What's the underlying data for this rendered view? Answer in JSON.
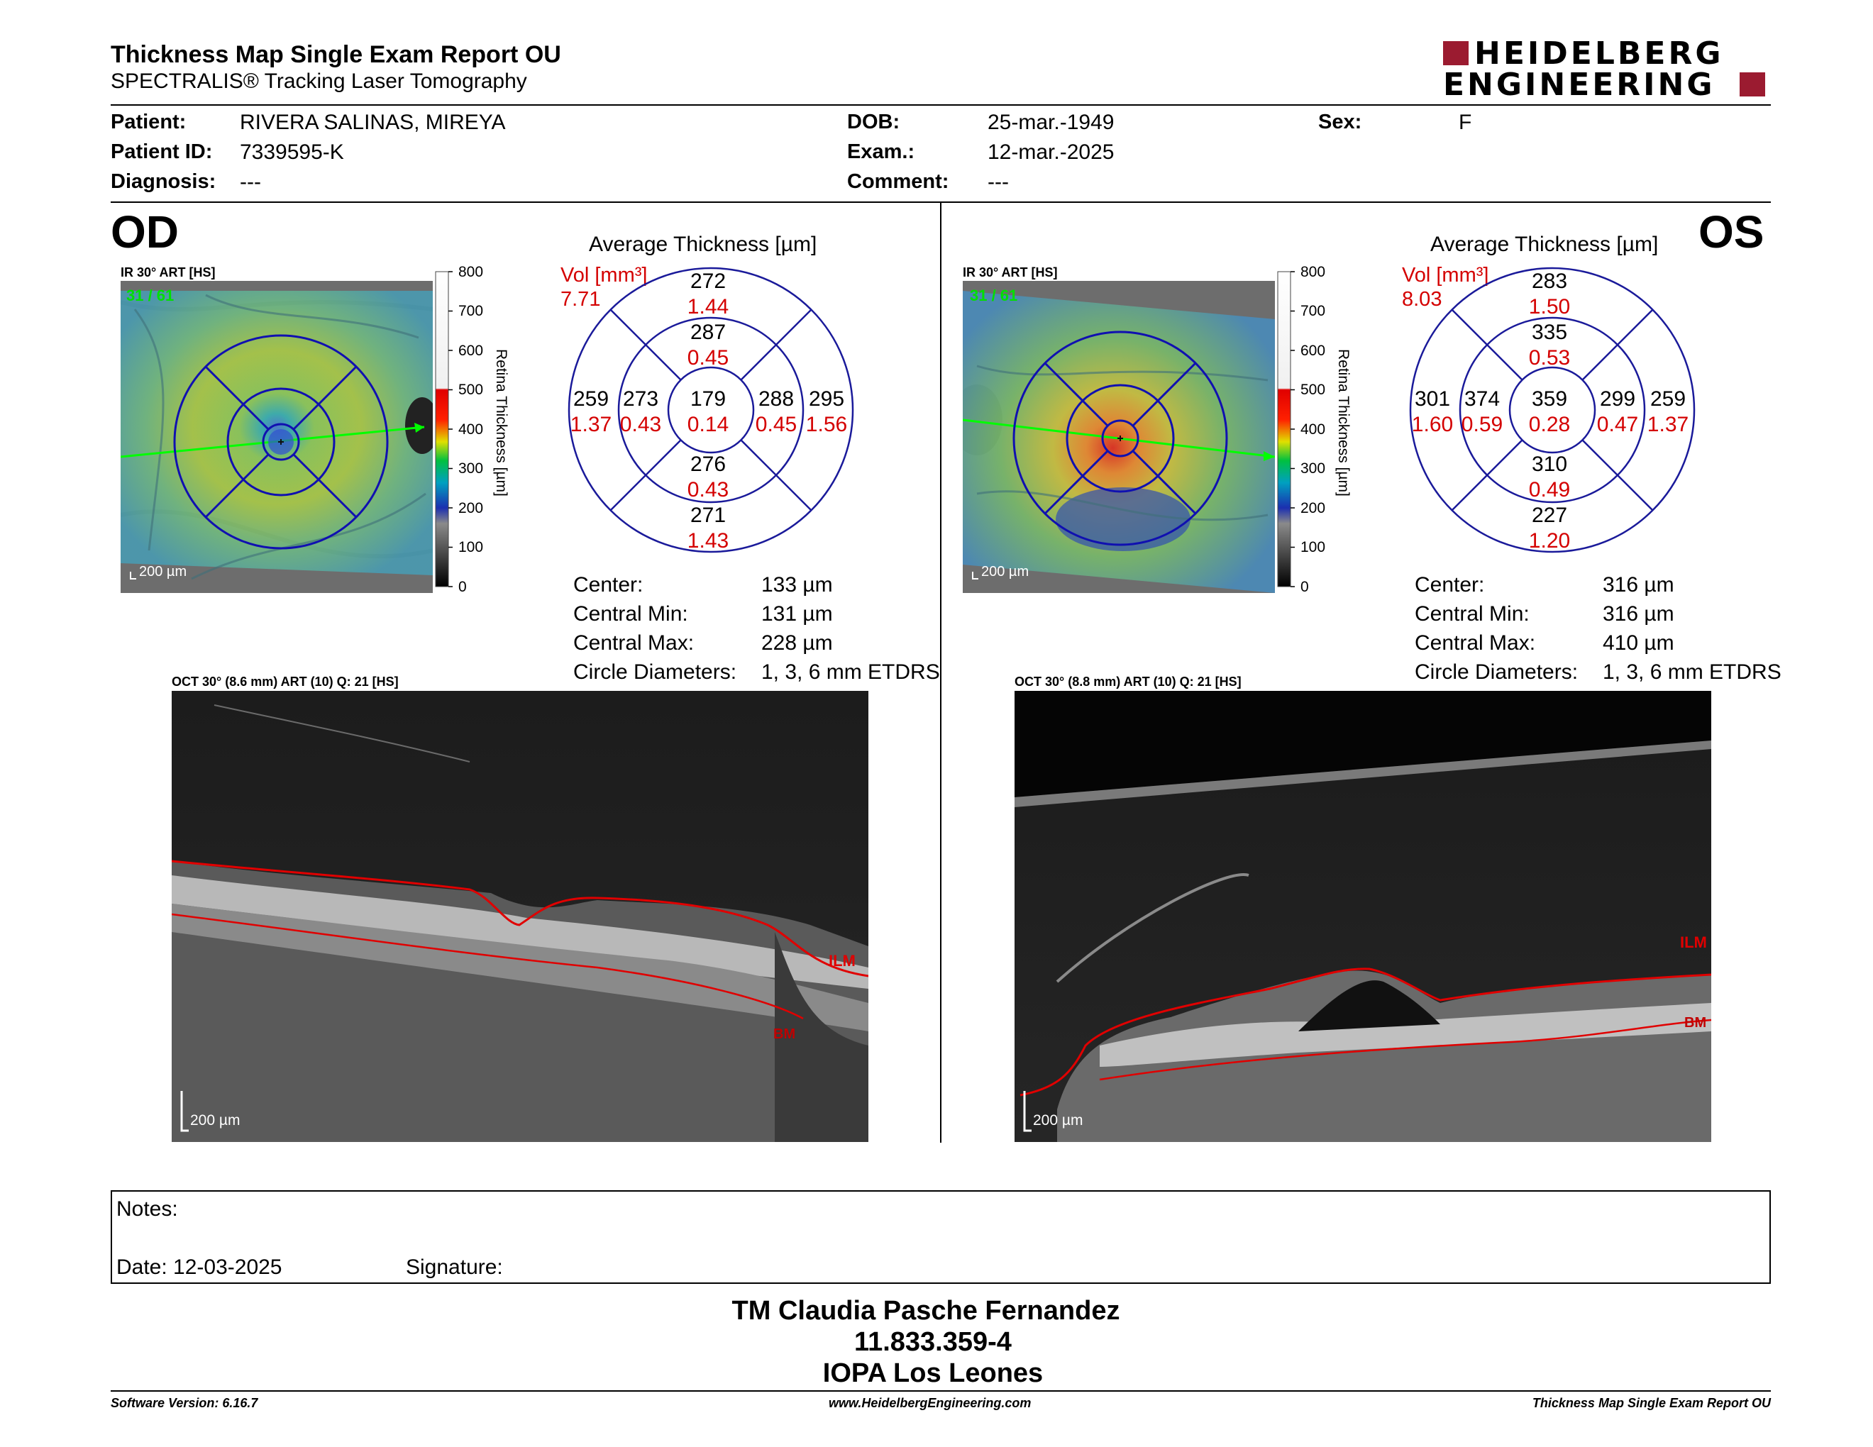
{
  "header": {
    "title": "Thickness Map Single Exam Report OU",
    "subtitle": "SPECTRALIS® Tracking Laser Tomography",
    "brand_line1": "HEIDELBERG",
    "brand_line2": "ENGINEERING",
    "brand_color": "#9b1b30"
  },
  "patient": {
    "patient_label": "Patient:",
    "patient_value": "RIVERA SALINAS, MIREYA",
    "id_label": "Patient ID:",
    "id_value": "7339595-K",
    "diagnosis_label": "Diagnosis:",
    "diagnosis_value": "---",
    "dob_label": "DOB:",
    "dob_value": "25-mar.-1949",
    "exam_label": "Exam.:",
    "exam_value": "12-mar.-2025",
    "comment_label": "Comment:",
    "comment_value": "---",
    "sex_label": "Sex:",
    "sex_value": "F"
  },
  "od": {
    "eye_label": "OD",
    "fundus_label": "IR 30° ART [HS]",
    "frames": "31 / 61",
    "fundus_scale": "200 µm",
    "avg_title": "Average Thickness [µm]",
    "vol_label": "Vol [mm³]",
    "vol_total": "7.71",
    "sectors": {
      "outer_sup": [
        "272",
        "1.44"
      ],
      "inner_sup": [
        "287",
        "0.45"
      ],
      "outer_temp": [
        "259",
        "1.37"
      ],
      "inner_temp": [
        "273",
        "0.43"
      ],
      "center": [
        "179",
        "0.14"
      ],
      "inner_nasal": [
        "288",
        "0.45"
      ],
      "outer_nasal": [
        "295",
        "1.56"
      ],
      "inner_inf": [
        "276",
        "0.43"
      ],
      "outer_inf": [
        "271",
        "1.43"
      ]
    },
    "stats": [
      {
        "label": "Center:",
        "value": "133 µm"
      },
      {
        "label": "Central Min:",
        "value": "131 µm"
      },
      {
        "label": "Central Max:",
        "value": "228 µm"
      },
      {
        "label": "Circle Diameters:",
        "value": "1, 3, 6 mm ETDRS"
      }
    ],
    "oct_label": "OCT 30° (8.6 mm) ART (10) Q: 21 [HS]",
    "oct_scale": "200 µm",
    "ilm": "ILM",
    "bm": "BM"
  },
  "os": {
    "eye_label": "OS",
    "fundus_label": "IR 30° ART [HS]",
    "frames": "31 / 61",
    "fundus_scale": "200 µm",
    "avg_title": "Average Thickness [µm]",
    "vol_label": "Vol [mm³]",
    "vol_total": "8.03",
    "sectors": {
      "outer_sup": [
        "283",
        "1.50"
      ],
      "inner_sup": [
        "335",
        "0.53"
      ],
      "outer_temp": [
        "301",
        "1.60"
      ],
      "inner_temp": [
        "374",
        "0.59"
      ],
      "center": [
        "359",
        "0.28"
      ],
      "inner_nasal": [
        "299",
        "0.47"
      ],
      "outer_nasal": [
        "259",
        "1.37"
      ],
      "inner_inf": [
        "310",
        "0.49"
      ],
      "outer_inf": [
        "227",
        "1.20"
      ]
    },
    "stats": [
      {
        "label": "Center:",
        "value": "316 µm"
      },
      {
        "label": "Central Min:",
        "value": "316 µm"
      },
      {
        "label": "Central Max:",
        "value": "410 µm"
      },
      {
        "label": "Circle Diameters:",
        "value": "1, 3, 6 mm ETDRS"
      }
    ],
    "oct_label": "OCT 30° (8.8 mm) ART (10) Q: 21 [HS]",
    "oct_scale": "200 µm",
    "ilm": "ILM",
    "bm": "BM"
  },
  "colorbar": {
    "ticks": [
      "800",
      "700",
      "600",
      "500",
      "400",
      "300",
      "200",
      "100",
      "0"
    ],
    "title": "Retina Thickness [µm]"
  },
  "notes": {
    "notes_label": "Notes:",
    "date_label": "Date: 12-03-2025",
    "signature_label": "Signature:"
  },
  "signature_block": {
    "name": "TM Claudia Pasche Fernandez",
    "rut": "11.833.359-4",
    "institution": "IOPA Los Leones"
  },
  "footer": {
    "software": "Software Version: 6.16.7",
    "website": "www.HeidelbergEngineering.com",
    "report": "Thickness Map Single Exam Report OU"
  }
}
